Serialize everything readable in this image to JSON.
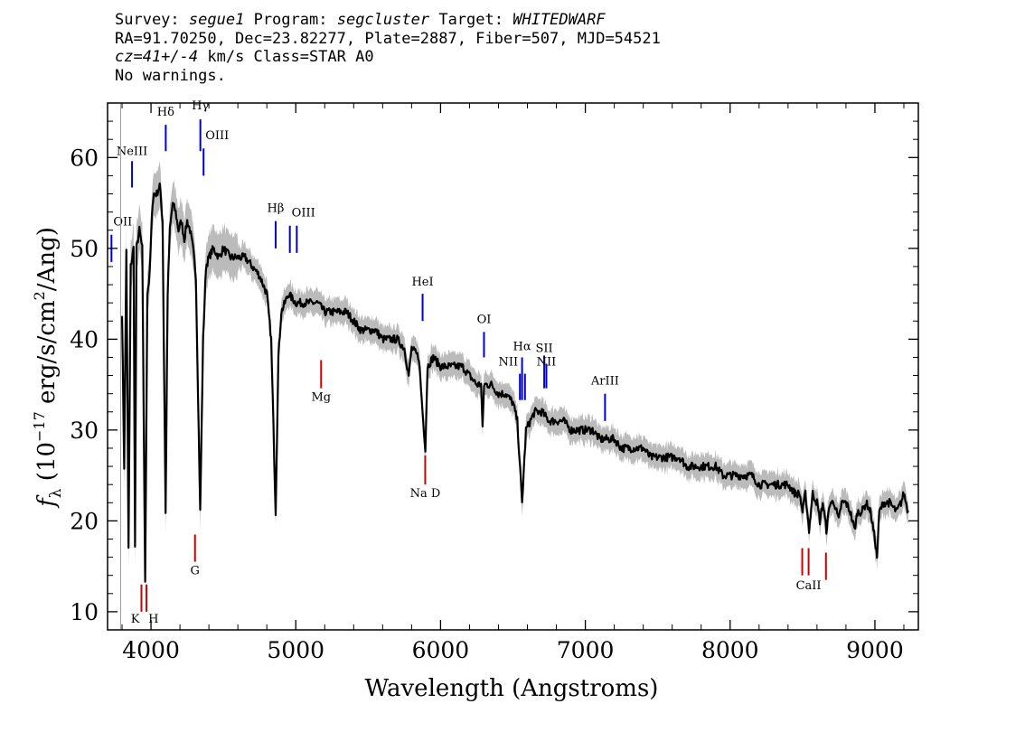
{
  "header": {
    "line1": {
      "survey_label": "Survey:",
      "survey": "segue1",
      "program_label": "Program:",
      "program": "segcluster",
      "target_label": "Target:",
      "target": "WHITEDWARF"
    },
    "line2": "RA=91.70250, Dec=23.82277, Plate=2887, Fiber=507, MJD=54521",
    "line3": {
      "cz": "cz=41+/-4",
      "rest": " km/s Class=STAR A0"
    },
    "line4": "No warnings."
  },
  "colors": {
    "flux": "#000000",
    "error": "#bbbbbb",
    "emission": "#0000cc",
    "absorption": "#cc0000"
  },
  "chart_data": {
    "type": "line",
    "xlabel": "Wavelength (Angstroms)",
    "ylabel_parts": {
      "f": "f",
      "sub": "λ",
      "open": " (10",
      "exp": "−17",
      "mid": " erg/s/cm",
      "exp2": "2",
      "close": "/Ang)"
    },
    "xlim": [
      3700,
      9300
    ],
    "ylim": [
      8,
      66
    ],
    "xticks": [
      4000,
      5000,
      6000,
      7000,
      8000,
      9000
    ],
    "yticks": [
      10,
      20,
      30,
      40,
      50,
      60
    ],
    "grid": false,
    "series": [
      {
        "role": "flux",
        "points": [
          [
            3800,
            43
          ],
          [
            3815,
            26
          ],
          [
            3830,
            50
          ],
          [
            3845,
            17
          ],
          [
            3860,
            48
          ],
          [
            3880,
            50
          ],
          [
            3890,
            17
          ],
          [
            3900,
            50
          ],
          [
            3920,
            52
          ],
          [
            3940,
            50
          ],
          [
            3960,
            13
          ],
          [
            3975,
            45
          ],
          [
            3990,
            47
          ],
          [
            4010,
            55
          ],
          [
            4020,
            56
          ],
          [
            4040,
            56
          ],
          [
            4060,
            57
          ],
          [
            4080,
            53
          ],
          [
            4101,
            21
          ],
          [
            4115,
            45
          ],
          [
            4130,
            52
          ],
          [
            4150,
            55
          ],
          [
            4170,
            54
          ],
          [
            4190,
            52
          ],
          [
            4210,
            53
          ],
          [
            4230,
            51
          ],
          [
            4250,
            53
          ],
          [
            4270,
            52
          ],
          [
            4290,
            50
          ],
          [
            4310,
            47
          ],
          [
            4340,
            21
          ],
          [
            4360,
            40
          ],
          [
            4380,
            48
          ],
          [
            4400,
            49
          ],
          [
            4430,
            50
          ],
          [
            4470,
            49
          ],
          [
            4500,
            50
          ],
          [
            4550,
            49
          ],
          [
            4600,
            49
          ],
          [
            4650,
            49
          ],
          [
            4700,
            48
          ],
          [
            4750,
            47
          ],
          [
            4800,
            45
          ],
          [
            4830,
            40
          ],
          [
            4861,
            21
          ],
          [
            4880,
            38
          ],
          [
            4900,
            43
          ],
          [
            4950,
            45
          ],
          [
            5000,
            44
          ],
          [
            5050,
            44
          ],
          [
            5100,
            44
          ],
          [
            5150,
            44
          ],
          [
            5200,
            43
          ],
          [
            5250,
            43
          ],
          [
            5300,
            43
          ],
          [
            5350,
            43
          ],
          [
            5400,
            42
          ],
          [
            5450,
            41
          ],
          [
            5500,
            41
          ],
          [
            5550,
            41
          ],
          [
            5600,
            40
          ],
          [
            5650,
            40
          ],
          [
            5700,
            40
          ],
          [
            5750,
            39
          ],
          [
            5780,
            36
          ],
          [
            5800,
            39
          ],
          [
            5850,
            38
          ],
          [
            5880,
            31
          ],
          [
            5895,
            28
          ],
          [
            5910,
            37
          ],
          [
            5950,
            38
          ],
          [
            6000,
            37
          ],
          [
            6050,
            37
          ],
          [
            6100,
            37
          ],
          [
            6150,
            37
          ],
          [
            6200,
            36
          ],
          [
            6250,
            35
          ],
          [
            6280,
            35
          ],
          [
            6290,
            30
          ],
          [
            6300,
            35
          ],
          [
            6350,
            35
          ],
          [
            6400,
            34
          ],
          [
            6450,
            34
          ],
          [
            6500,
            33
          ],
          [
            6530,
            31
          ],
          [
            6563,
            22
          ],
          [
            6590,
            30
          ],
          [
            6620,
            31
          ],
          [
            6650,
            32
          ],
          [
            6700,
            32
          ],
          [
            6750,
            31
          ],
          [
            6800,
            31
          ],
          [
            6850,
            31
          ],
          [
            6900,
            30
          ],
          [
            6950,
            30
          ],
          [
            7000,
            30
          ],
          [
            7050,
            30
          ],
          [
            7100,
            29
          ],
          [
            7150,
            29
          ],
          [
            7200,
            29
          ],
          [
            7250,
            28
          ],
          [
            7300,
            28
          ],
          [
            7350,
            28
          ],
          [
            7400,
            28
          ],
          [
            7450,
            27
          ],
          [
            7500,
            27
          ],
          [
            7550,
            27
          ],
          [
            7600,
            27
          ],
          [
            7650,
            27
          ],
          [
            7700,
            26
          ],
          [
            7750,
            26
          ],
          [
            7800,
            26
          ],
          [
            7850,
            26
          ],
          [
            7900,
            26
          ],
          [
            7950,
            25
          ],
          [
            8000,
            25
          ],
          [
            8050,
            25
          ],
          [
            8100,
            25
          ],
          [
            8150,
            25
          ],
          [
            8200,
            24
          ],
          [
            8250,
            24
          ],
          [
            8300,
            24
          ],
          [
            8350,
            24
          ],
          [
            8400,
            24
          ],
          [
            8450,
            23
          ],
          [
            8480,
            23
          ],
          [
            8500,
            21
          ],
          [
            8520,
            23
          ],
          [
            8545,
            19
          ],
          [
            8570,
            23
          ],
          [
            8600,
            22
          ],
          [
            8620,
            20
          ],
          [
            8640,
            22
          ],
          [
            8665,
            19
          ],
          [
            8690,
            22
          ],
          [
            8720,
            22
          ],
          [
            8750,
            20
          ],
          [
            8770,
            22
          ],
          [
            8800,
            22
          ],
          [
            8830,
            21
          ],
          [
            8860,
            19
          ],
          [
            8880,
            21
          ],
          [
            8910,
            21
          ],
          [
            8940,
            22
          ],
          [
            8970,
            21
          ],
          [
            9000,
            18
          ],
          [
            9015,
            16
          ],
          [
            9030,
            21
          ],
          [
            9060,
            22
          ],
          [
            9100,
            22
          ],
          [
            9150,
            21
          ],
          [
            9180,
            22
          ],
          [
            9200,
            23
          ],
          [
            9230,
            21
          ]
        ]
      }
    ],
    "emission_lines": [
      {
        "label": "OII",
        "wave": 3727,
        "y_top": 51.5,
        "y_bot": 48.5,
        "label_y": 52.5,
        "anchor": "start"
      },
      {
        "label": "NeIII",
        "wave": 3869,
        "y_top": 59.6,
        "y_bot": 56.7,
        "label_y": 60.3,
        "anchor": "middle"
      },
      {
        "label": "Hδ",
        "wave": 4102,
        "y_top": 63.6,
        "y_bot": 60.7,
        "label_y": 64.6,
        "anchor": "middle"
      },
      {
        "label": "Hγ",
        "wave": 4341,
        "y_top": 64.2,
        "y_bot": 60.7,
        "label_y": 65.3,
        "anchor": "middle"
      },
      {
        "label": "OIII",
        "wave": 4363,
        "y_top": 61,
        "y_bot": 58,
        "label_y": 62,
        "anchor": "start"
      },
      {
        "label": "Hβ",
        "wave": 4861,
        "y_top": 53,
        "y_bot": 50,
        "label_y": 54,
        "anchor": "middle"
      },
      {
        "label": "OIII",
        "wave": 4959,
        "y_top": 52.5,
        "y_bot": 49.5,
        "label_y": 53.5,
        "anchor": "start"
      },
      {
        "label": "",
        "wave": 5007,
        "y_top": 52.5,
        "y_bot": 49.5
      },
      {
        "label": "HeI",
        "wave": 5876,
        "y_top": 45,
        "y_bot": 42,
        "label_y": 45.9,
        "anchor": "middle"
      },
      {
        "label": "OI",
        "wave": 6300,
        "y_top": 40.8,
        "y_bot": 38,
        "label_y": 41.8,
        "anchor": "middle"
      },
      {
        "label": "NII",
        "wave": 6548,
        "y_top": 36.2,
        "y_bot": 33.3,
        "label_y": 37.1,
        "anchor": "end"
      },
      {
        "label": "Hα",
        "wave": 6563,
        "y_top": 38,
        "y_bot": 33.3,
        "label_y": 38.8,
        "anchor": "middle"
      },
      {
        "label": "",
        "wave": 6583,
        "y_top": 36.2,
        "y_bot": 33.3
      },
      {
        "label": "SII",
        "wave": 6716,
        "y_top": 38.2,
        "y_bot": 34.6,
        "label_y": 38.6,
        "anchor": "middle"
      },
      {
        "label": "NII",
        "wave": 6731,
        "y_top": 37.3,
        "y_bot": 34.6,
        "label_y": 37.1,
        "anchor": "middle"
      },
      {
        "label": "ArIII",
        "wave": 7136,
        "y_top": 34,
        "y_bot": 31,
        "label_y": 35,
        "anchor": "middle"
      }
    ],
    "absorption_lines": [
      {
        "label": "K",
        "wave": 3934,
        "y_top": 13,
        "y_bot": 10,
        "label_y": 8.8,
        "anchor": "end"
      },
      {
        "label": "H",
        "wave": 3969,
        "y_top": 13,
        "y_bot": 10,
        "label_y": 8.8,
        "anchor": "start"
      },
      {
        "label": "G",
        "wave": 4304,
        "y_top": 18.5,
        "y_bot": 15.5,
        "label_y": 14.1,
        "anchor": "middle"
      },
      {
        "label": "Mg",
        "wave": 5175,
        "y_top": 37.7,
        "y_bot": 34.6,
        "label_y": 33.2,
        "anchor": "middle"
      },
      {
        "label": "Na  D",
        "wave": 5894,
        "y_top": 27.2,
        "y_bot": 24,
        "label_y": 22.6,
        "anchor": "middle"
      },
      {
        "label": "",
        "wave": 8498,
        "y_top": 17,
        "y_bot": 14
      },
      {
        "label": "CaII",
        "wave": 8542,
        "y_top": 17,
        "y_bot": 14,
        "label_y": 12.5,
        "anchor": "middle"
      },
      {
        "label": "",
        "wave": 8662,
        "y_top": 16.5,
        "y_bot": 13.5
      }
    ]
  }
}
